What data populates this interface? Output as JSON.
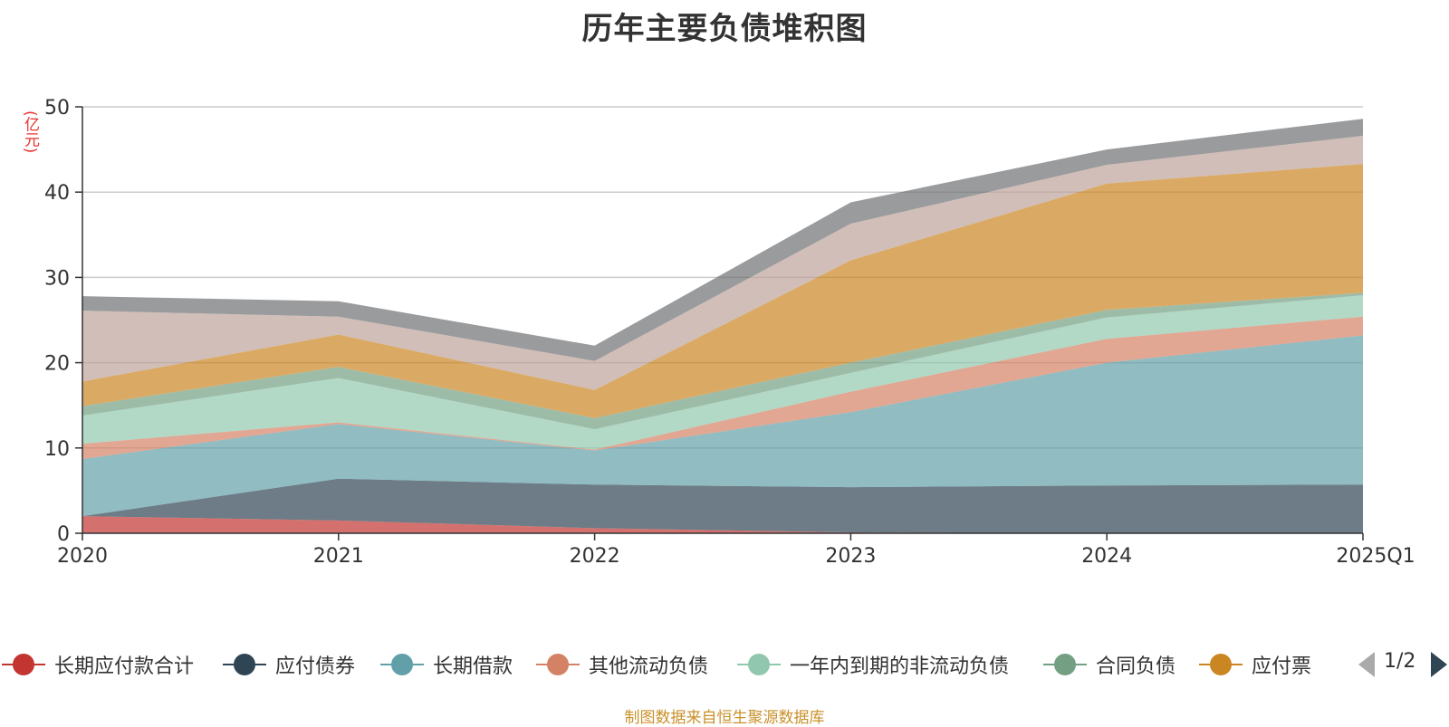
{
  "chart_data": {
    "type": "area",
    "stacked": true,
    "title": "历年主要负债堆积图",
    "unit_label": "(亿元)",
    "categories": [
      "2020",
      "2021",
      "2022",
      "2023",
      "2024",
      "2025Q1"
    ],
    "ylim": [
      0,
      50
    ],
    "yticks": [
      0,
      10,
      20,
      30,
      40,
      50
    ],
    "grid": true,
    "series": [
      {
        "name": "长期应付款合计",
        "color": "#c23531",
        "values": [
          2.0,
          1.5,
          0.6,
          0.1,
          0.0,
          0.0
        ]
      },
      {
        "name": "应付债券",
        "color": "#2f4554",
        "values": [
          0.0,
          4.9,
          5.1,
          5.3,
          5.6,
          5.7
        ]
      },
      {
        "name": "长期借款",
        "color": "#61a0a8",
        "values": [
          6.7,
          6.4,
          4.0,
          8.8,
          14.4,
          17.5
        ]
      },
      {
        "name": "其他流动负债",
        "color": "#d48265",
        "values": [
          1.8,
          0.2,
          0.1,
          2.4,
          2.8,
          2.2
        ]
      },
      {
        "name": "一年内到期的非流动负债",
        "color": "#91c7ae",
        "values": [
          3.3,
          5.2,
          2.4,
          2.2,
          2.5,
          2.5
        ]
      },
      {
        "name": "合同负债",
        "color": "#749f83",
        "values": [
          1.1,
          1.3,
          1.3,
          1.2,
          0.9,
          0.3
        ]
      },
      {
        "name": "应付票据",
        "color": "#ca8622",
        "values": [
          2.9,
          3.8,
          3.3,
          12.0,
          14.8,
          15.1
        ]
      },
      {
        "name": "",
        "color": "#bda29a",
        "values": [
          8.3,
          2.1,
          3.4,
          4.3,
          2.2,
          3.3
        ]
      },
      {
        "name": "",
        "color": "#6e7074",
        "values": [
          1.7,
          1.8,
          1.8,
          2.5,
          1.8,
          2.0
        ]
      }
    ],
    "legend": {
      "placement": "bottom",
      "visible_items": [
        "长期应付款合计",
        "应付债券",
        "长期借款",
        "其他流动负债",
        "一年内到期的非流动负债",
        "合同负债",
        "应付票"
      ],
      "page": "1/2"
    },
    "source_note": "制图数据来自恒生聚源数据库"
  }
}
